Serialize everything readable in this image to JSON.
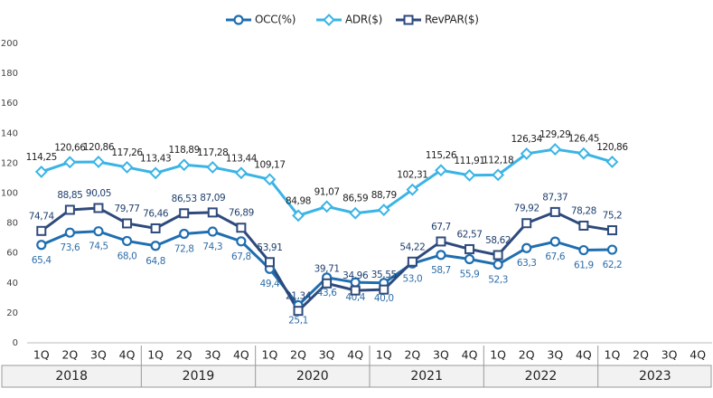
{
  "chart_data": {
    "type": "line",
    "categories": [
      "1Q",
      "2Q",
      "3Q",
      "4Q",
      "1Q",
      "2Q",
      "3Q",
      "4Q",
      "1Q",
      "2Q",
      "3Q",
      "4Q",
      "1Q",
      "2Q",
      "3Q",
      "4Q",
      "1Q",
      "2Q",
      "3Q",
      "4Q",
      "1Q",
      "2Q",
      "3Q",
      "4Q"
    ],
    "years": [
      "2018",
      "2019",
      "2020",
      "2021",
      "2022",
      "2023"
    ],
    "ylim": [
      0,
      200
    ],
    "yticks": [
      0,
      20,
      40,
      60,
      80,
      100,
      120,
      140,
      160,
      180,
      200
    ],
    "legend": "top",
    "series": [
      {
        "name": "OCC(%)",
        "color": "#1f6eb0",
        "marker": "circle",
        "label_color": "#2f6ea8",
        "label_side": "below",
        "values": [
          65.4,
          73.6,
          74.5,
          68.0,
          64.8,
          72.8,
          74.3,
          67.8,
          49.4,
          25.1,
          43.6,
          40.4,
          40.0,
          53.0,
          58.7,
          55.9,
          52.3,
          63.3,
          67.6,
          61.9,
          62.2,
          null,
          null,
          null
        ],
        "value_labels": [
          "65,4",
          "73,6",
          "74,5",
          "68,0",
          "64,8",
          "72,8",
          "74,3",
          "67,8",
          "49,4",
          "25,1",
          "43,6",
          "40,4",
          "40,0",
          "53,0",
          "58,7",
          "55,9",
          "52,3",
          "63,3",
          "67,6",
          "61,9",
          "62,2",
          null,
          null,
          null
        ]
      },
      {
        "name": "ADR($)",
        "color": "#3ab4e6",
        "marker": "diamond",
        "label_color": "#222222",
        "label_side": "above",
        "values": [
          114.25,
          120.66,
          120.86,
          117.26,
          113.43,
          118.89,
          117.28,
          113.44,
          109.17,
          84.98,
          91.07,
          86.59,
          88.79,
          102.31,
          115.26,
          111.91,
          112.18,
          126.34,
          129.29,
          126.45,
          120.86,
          null,
          null,
          null
        ],
        "value_labels": [
          "114,25",
          "120,66",
          "120,86",
          "117,26",
          "113,43",
          "118,89",
          "117,28",
          "113,44",
          "109,17",
          "84,98",
          "91,07",
          "86,59",
          "88,79",
          "102,31",
          "115,26",
          "111,91",
          "112,18",
          "126,34",
          "129,29",
          "126,45",
          "120,86",
          null,
          null,
          null
        ]
      },
      {
        "name": "RevPAR($)",
        "color": "#2e4a7c",
        "marker": "square",
        "label_color": "#1f3f6e",
        "label_side": "above",
        "values": [
          74.74,
          88.85,
          90.05,
          79.77,
          76.46,
          86.53,
          87.09,
          76.89,
          53.91,
          21.34,
          39.71,
          34.96,
          35.55,
          54.22,
          67.7,
          62.57,
          58.62,
          79.92,
          87.37,
          78.28,
          75.2,
          null,
          null,
          null
        ],
        "value_labels": [
          "74,74",
          "88,85",
          "90,05",
          "79,77",
          "76,46",
          "86,53",
          "87,09",
          "76,89",
          "53,91",
          "21,34",
          "39,71",
          "34,96",
          "35,55",
          "54,22",
          "67,7",
          "62,57",
          "58,62",
          "79,92",
          "87,37",
          "78,28",
          "75,2",
          null,
          null,
          null
        ]
      }
    ]
  }
}
